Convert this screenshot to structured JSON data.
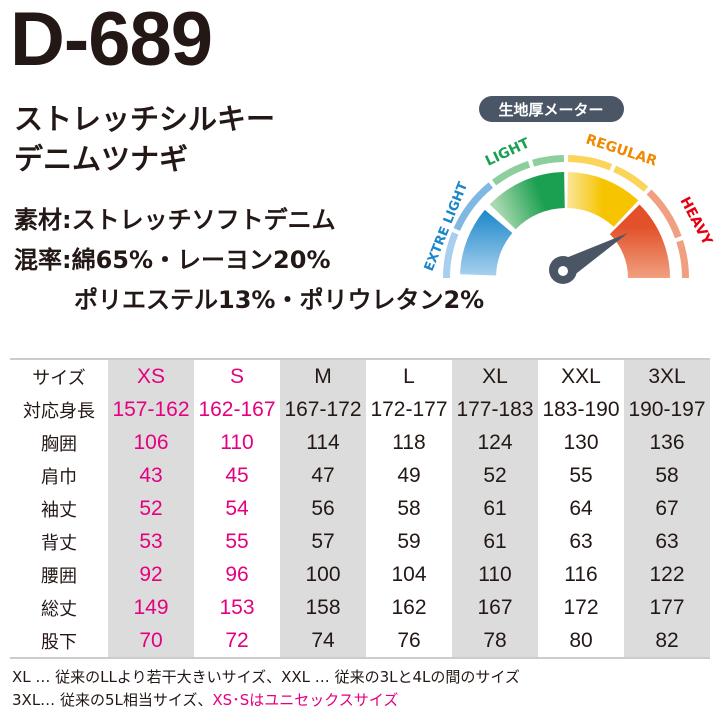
{
  "product": {
    "code": "D-689",
    "name_line1": "ストレッチシルキー",
    "name_line2": "デニムツナギ",
    "material": "素材:ストレッチソフトデニム",
    "blend_line1": "混率:綿65%・レーヨン20%",
    "blend_line2": "ポリエステル13%・ポリウレタン2%"
  },
  "gauge": {
    "title": "生地厚メーター",
    "labels": [
      "EXTRE LIGHT",
      "LIGHT",
      "REGULAR",
      "HEAVY"
    ],
    "selected": "HEAVY",
    "colors": {
      "extra_light": "#1b87c9",
      "light": "#1aa050",
      "regular": "#f6c400",
      "heavy": "#e2512a",
      "needle": "#4a5666"
    }
  },
  "table": {
    "header": [
      "サイズ",
      "XS",
      "S",
      "M",
      "L",
      "XL",
      "XXL",
      "3XL"
    ],
    "rows": [
      [
        "対応身長",
        "157-162",
        "162-167",
        "167-172",
        "172-177",
        "177-183",
        "183-190",
        "190-197"
      ],
      [
        "胸囲",
        "106",
        "110",
        "114",
        "118",
        "124",
        "130",
        "136"
      ],
      [
        "肩巾",
        "43",
        "45",
        "47",
        "49",
        "52",
        "55",
        "58"
      ],
      [
        "袖丈",
        "52",
        "54",
        "56",
        "58",
        "61",
        "64",
        "67"
      ],
      [
        "背丈",
        "53",
        "55",
        "57",
        "59",
        "61",
        "63",
        "63"
      ],
      [
        "腰囲",
        "92",
        "96",
        "100",
        "104",
        "110",
        "116",
        "122"
      ],
      [
        "総丈",
        "149",
        "153",
        "158",
        "162",
        "167",
        "172",
        "177"
      ],
      [
        "股下",
        "70",
        "72",
        "74",
        "76",
        "78",
        "80",
        "82"
      ]
    ],
    "accent": "#e4007f"
  },
  "notes": {
    "line1": "XL … 従来のLLより若干大きいサイズ、XXL … 従来の3Lと4Lの間のサイズ",
    "line2_prefix": "3XL… 従来の5L相当サイズ、",
    "line2_highlight": "XS･Sはユニセックスサイズ"
  }
}
